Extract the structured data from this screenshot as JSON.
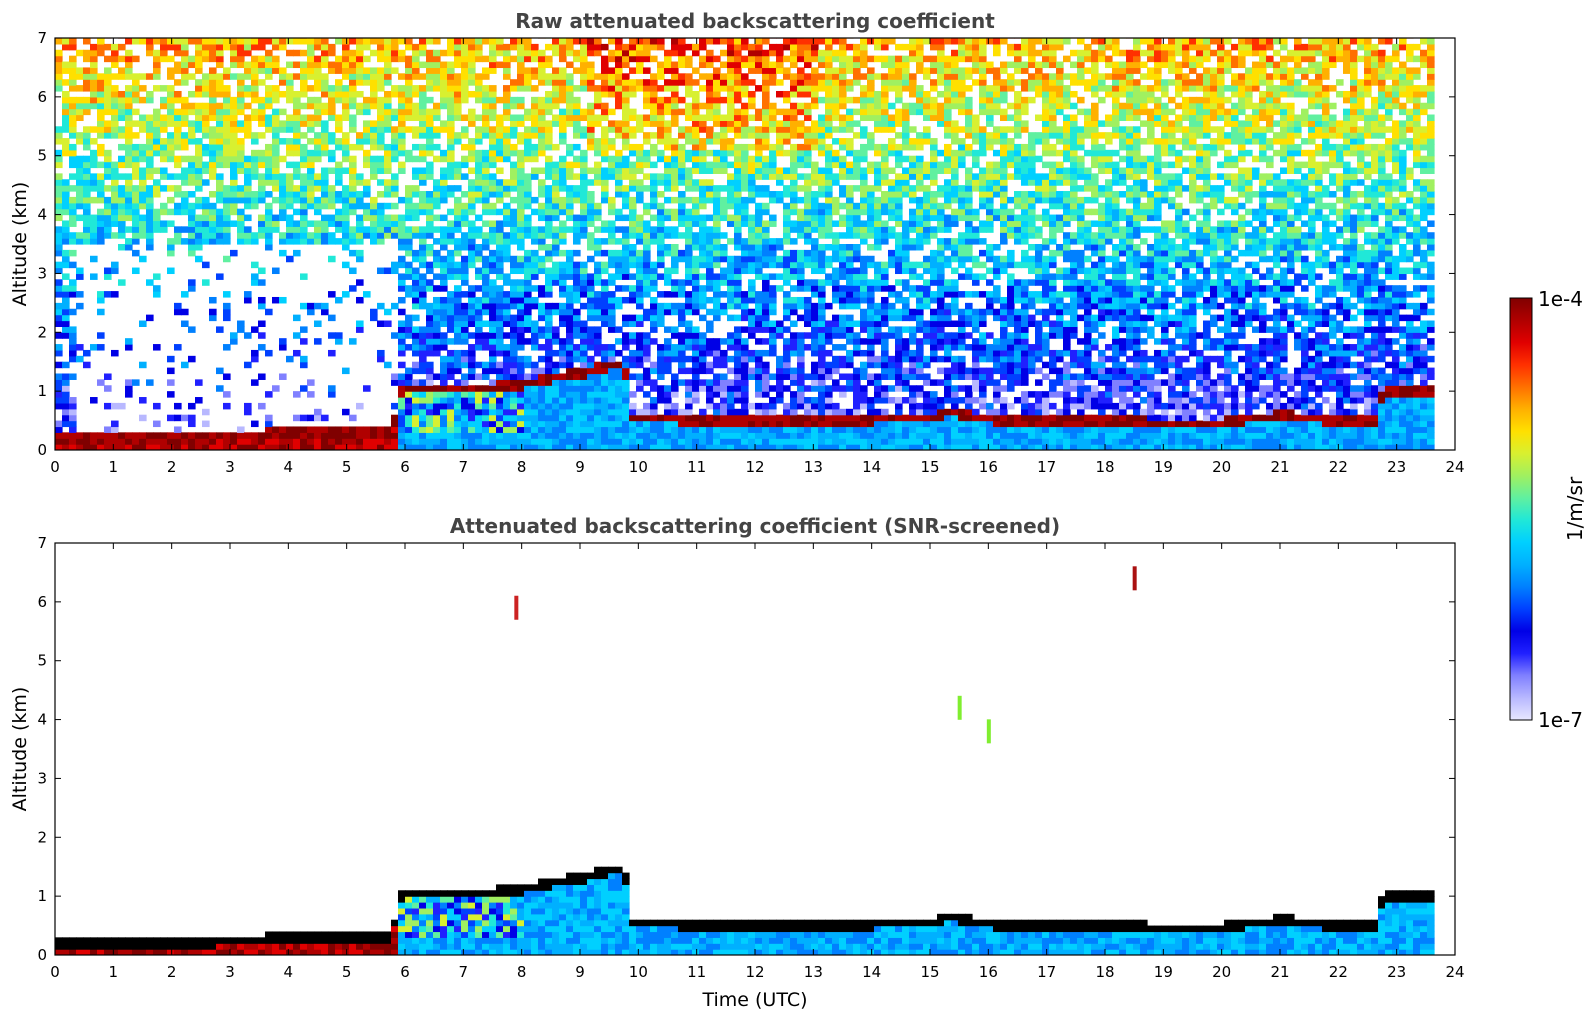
{
  "chart_data": [
    {
      "type": "heatmap",
      "title": "Raw attenuated backscattering coefficient",
      "xlabel": "",
      "ylabel": "Altitude (km)",
      "xlim": [
        0,
        24
      ],
      "ylim": [
        0,
        7
      ],
      "x_ticks": [
        "0",
        "1",
        "2",
        "3",
        "4",
        "5",
        "6",
        "7",
        "8",
        "9",
        "10",
        "11",
        "12",
        "13",
        "14",
        "15",
        "16",
        "17",
        "18",
        "19",
        "20",
        "21",
        "22",
        "23",
        "24"
      ],
      "y_ticks": [
        "0",
        "1",
        "2",
        "3",
        "4",
        "5",
        "6",
        "7"
      ],
      "data_end_time": 23.6,
      "screened": false,
      "boundary_layer_top_km": [
        [
          0,
          0.2
        ],
        [
          1,
          0.18
        ],
        [
          2,
          0.15
        ],
        [
          3,
          0.22
        ],
        [
          4,
          0.28
        ],
        [
          5,
          0.25
        ],
        [
          5.7,
          0.3
        ],
        [
          5.9,
          1.05
        ],
        [
          7,
          1.0
        ],
        [
          8,
          1.1
        ],
        [
          9,
          1.3
        ],
        [
          9.7,
          1.45
        ],
        [
          9.8,
          0.55
        ],
        [
          11,
          0.48
        ],
        [
          12,
          0.45
        ],
        [
          13,
          0.48
        ],
        [
          14,
          0.5
        ],
        [
          15,
          0.55
        ],
        [
          15.3,
          0.62
        ],
        [
          16,
          0.5
        ],
        [
          17,
          0.5
        ],
        [
          18,
          0.5
        ],
        [
          19,
          0.42
        ],
        [
          20,
          0.45
        ],
        [
          21,
          0.58
        ],
        [
          22,
          0.45
        ],
        [
          22.6,
          0.5
        ],
        [
          22.7,
          0.98
        ],
        [
          23.6,
          1.0
        ]
      ]
    },
    {
      "type": "heatmap",
      "title": "Attenuated backscattering coefficient (SNR-screened)",
      "xlabel": "Time (UTC)",
      "ylabel": "Altitude (km)",
      "xlim": [
        0,
        24
      ],
      "ylim": [
        0,
        7
      ],
      "x_ticks": [
        "0",
        "1",
        "2",
        "3",
        "4",
        "5",
        "6",
        "7",
        "8",
        "9",
        "10",
        "11",
        "12",
        "13",
        "14",
        "15",
        "16",
        "17",
        "18",
        "19",
        "20",
        "21",
        "22",
        "23",
        "24"
      ],
      "y_ticks": [
        "0",
        "1",
        "2",
        "3",
        "4",
        "5",
        "6",
        "7"
      ],
      "data_end_time": 23.6,
      "screened": true,
      "isolated_features": [
        {
          "time": 15.5,
          "alt_km": 4.2,
          "color": "#80ee30"
        },
        {
          "time": 16.0,
          "alt_km": 3.8,
          "color": "#80ee30"
        },
        {
          "time": 7.9,
          "alt_km": 5.9,
          "color": "#cc2222"
        },
        {
          "time": 18.5,
          "alt_km": 6.4,
          "color": "#aa1111"
        }
      ]
    }
  ],
  "colorbar": {
    "label": "1/m/sr",
    "min_label": "1e-7",
    "max_label": "1e-4",
    "colors": [
      "#e8e8ff",
      "#b8b8ff",
      "#8080ff",
      "#2020ff",
      "#0000e6",
      "#0040ff",
      "#0080ff",
      "#00b0ff",
      "#00d0ff",
      "#20e8d8",
      "#60f0a0",
      "#a0f060",
      "#d8f030",
      "#ffe000",
      "#ffb000",
      "#ff7000",
      "#ff3000",
      "#e00000",
      "#b00000",
      "#800000"
    ]
  }
}
